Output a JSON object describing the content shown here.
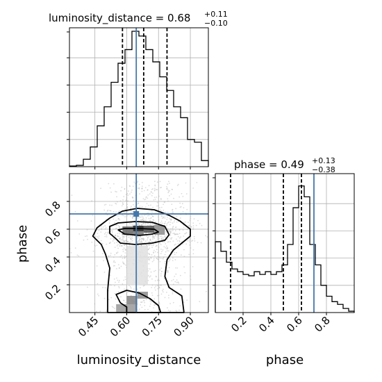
{
  "chart_data": {
    "type": "corner",
    "parameters": [
      "luminosity_distance",
      "phase"
    ],
    "truth": {
      "luminosity_distance": 0.645,
      "phase": 0.71
    },
    "colors": {
      "truth": "#4477aa",
      "hist": "#000000",
      "grid": "#b0b0b0",
      "scatter": "#bdbdbd"
    },
    "panels": {
      "luminosity_distance_hist": {
        "title_main": "luminosity_distance = 0.68",
        "title_sup": "+0.11",
        "title_sub": "−0.10",
        "xlim": [
          0.33,
          0.985
        ],
        "ylim": [
          0,
          1
        ],
        "grid": true,
        "bin_edges": [
          0.33,
          0.3627,
          0.3955,
          0.4282,
          0.461,
          0.4937,
          0.5265,
          0.5592,
          0.592,
          0.6247,
          0.6575,
          0.6902,
          0.723,
          0.7557,
          0.7885,
          0.8212,
          0.854,
          0.8867,
          0.9195,
          0.9522,
          0.985
        ],
        "counts": [
          0.005,
          0.01,
          0.055,
          0.145,
          0.3,
          0.44,
          0.62,
          0.76,
          0.86,
          0.995,
          0.96,
          0.86,
          0.77,
          0.66,
          0.56,
          0.44,
          0.36,
          0.2,
          0.18,
          0.045
        ],
        "quantiles": [
          0.58,
          0.68,
          0.79
        ],
        "truth": 0.645
      },
      "luminosity_distance_vs_phase": {
        "xlim": [
          0.33,
          0.985
        ],
        "ylim": [
          0.0,
          1.0
        ],
        "grid": true,
        "truth_point": [
          0.645,
          0.71
        ],
        "contours": [
          {
            "name": "inner",
            "points": [
              [
                0.56,
                0.595
              ],
              [
                0.59,
                0.565
              ],
              [
                0.66,
                0.555
              ],
              [
                0.72,
                0.565
              ],
              [
                0.75,
                0.58
              ],
              [
                0.73,
                0.6
              ],
              [
                0.66,
                0.605
              ],
              [
                0.59,
                0.605
              ]
            ]
          },
          {
            "name": "mid",
            "points": [
              [
                0.55,
                0.53
              ],
              [
                0.57,
                0.5
              ],
              [
                0.64,
                0.49
              ],
              [
                0.72,
                0.5
              ],
              [
                0.78,
                0.52
              ],
              [
                0.8,
                0.56
              ],
              [
                0.78,
                0.62
              ],
              [
                0.72,
                0.65
              ],
              [
                0.64,
                0.655
              ],
              [
                0.56,
                0.645
              ],
              [
                0.52,
                0.62
              ],
              [
                0.52,
                0.57
              ]
            ]
          },
          {
            "name": "outer",
            "points": [
              [
                0.48,
                0.49
              ],
              [
                0.5,
                0.42
              ],
              [
                0.52,
                0.32
              ],
              [
                0.51,
                0.16
              ],
              [
                0.51,
                0.0
              ],
              [
                0.87,
                0.0
              ],
              [
                0.86,
                0.12
              ],
              [
                0.8,
                0.18
              ],
              [
                0.78,
                0.26
              ],
              [
                0.79,
                0.38
              ],
              [
                0.82,
                0.45
              ],
              [
                0.86,
                0.5
              ],
              [
                0.9,
                0.55
              ],
              [
                0.9,
                0.6
              ],
              [
                0.85,
                0.66
              ],
              [
                0.8,
                0.7
              ],
              [
                0.73,
                0.74
              ],
              [
                0.65,
                0.75
              ],
              [
                0.58,
                0.73
              ],
              [
                0.52,
                0.68
              ],
              [
                0.46,
                0.61
              ],
              [
                0.44,
                0.55
              ]
            ]
          },
          {
            "name": "low",
            "points": [
              [
                0.55,
                0.13
              ],
              [
                0.57,
                0.07
              ],
              [
                0.6,
                0.04
              ],
              [
                0.6,
                0.0
              ],
              [
                0.76,
                0.0
              ],
              [
                0.75,
                0.05
              ],
              [
                0.71,
                0.1
              ],
              [
                0.66,
                0.14
              ],
              [
                0.6,
                0.16
              ]
            ]
          }
        ],
        "density_cells": [
          {
            "x": 0.63,
            "y": 0.585,
            "w": 0.05,
            "h": 0.04,
            "shade": 0.9
          },
          {
            "x": 0.68,
            "y": 0.575,
            "w": 0.05,
            "h": 0.05,
            "shade": 0.7
          },
          {
            "x": 0.58,
            "y": 0.56,
            "w": 0.05,
            "h": 0.06,
            "shade": 0.6
          },
          {
            "x": 0.73,
            "y": 0.56,
            "w": 0.05,
            "h": 0.07,
            "shade": 0.45
          },
          {
            "x": 0.63,
            "y": 0.555,
            "w": 0.05,
            "h": 0.03,
            "shade": 0.55
          },
          {
            "x": 0.6,
            "y": 0.06,
            "w": 0.05,
            "h": 0.06,
            "shade": 0.5
          },
          {
            "x": 0.65,
            "y": 0.1,
            "w": 0.05,
            "h": 0.05,
            "shade": 0.45
          },
          {
            "x": 0.55,
            "y": 0.0,
            "w": 0.1,
            "h": 0.06,
            "shade": 0.4
          },
          {
            "x": 0.6,
            "y": 0.2,
            "w": 0.1,
            "h": 0.28,
            "shade": 0.12
          }
        ],
        "xticks": [
          0.45,
          0.6,
          0.75,
          0.9
        ],
        "xtick_labels": [
          "0.45",
          "0.60",
          "0.75",
          "0.90"
        ],
        "yticks": [
          0.2,
          0.4,
          0.6,
          0.8
        ],
        "ytick_labels": [
          "0.2",
          "0.4",
          "0.6",
          "0.8"
        ],
        "xlabel": "luminosity_distance",
        "ylabel": "phase"
      },
      "phase_hist": {
        "title_main": "phase = 0.49",
        "title_sup": "+0.13",
        "title_sub": "−0.38",
        "xlim": [
          0.0,
          1.0
        ],
        "ylim": [
          0,
          1
        ],
        "grid": true,
        "bin_edges": [
          0.0,
          0.04,
          0.08,
          0.12,
          0.16,
          0.2,
          0.24,
          0.28,
          0.32,
          0.36,
          0.4,
          0.44,
          0.48,
          0.52,
          0.56,
          0.6,
          0.64,
          0.68,
          0.72,
          0.76,
          0.8,
          0.84,
          0.88,
          0.92,
          0.96,
          1.0
        ],
        "counts": [
          0.52,
          0.45,
          0.37,
          0.32,
          0.3,
          0.28,
          0.27,
          0.3,
          0.28,
          0.3,
          0.28,
          0.3,
          0.35,
          0.5,
          0.77,
          0.93,
          0.85,
          0.5,
          0.35,
          0.2,
          0.12,
          0.08,
          0.06,
          0.03,
          0.01
        ],
        "quantiles": [
          0.11,
          0.49,
          0.62
        ],
        "truth": 0.71,
        "xticks": [
          0.2,
          0.4,
          0.6,
          0.8
        ],
        "xtick_labels": [
          "0.2",
          "0.4",
          "0.6",
          "0.8"
        ],
        "xlabel": "phase"
      }
    }
  }
}
